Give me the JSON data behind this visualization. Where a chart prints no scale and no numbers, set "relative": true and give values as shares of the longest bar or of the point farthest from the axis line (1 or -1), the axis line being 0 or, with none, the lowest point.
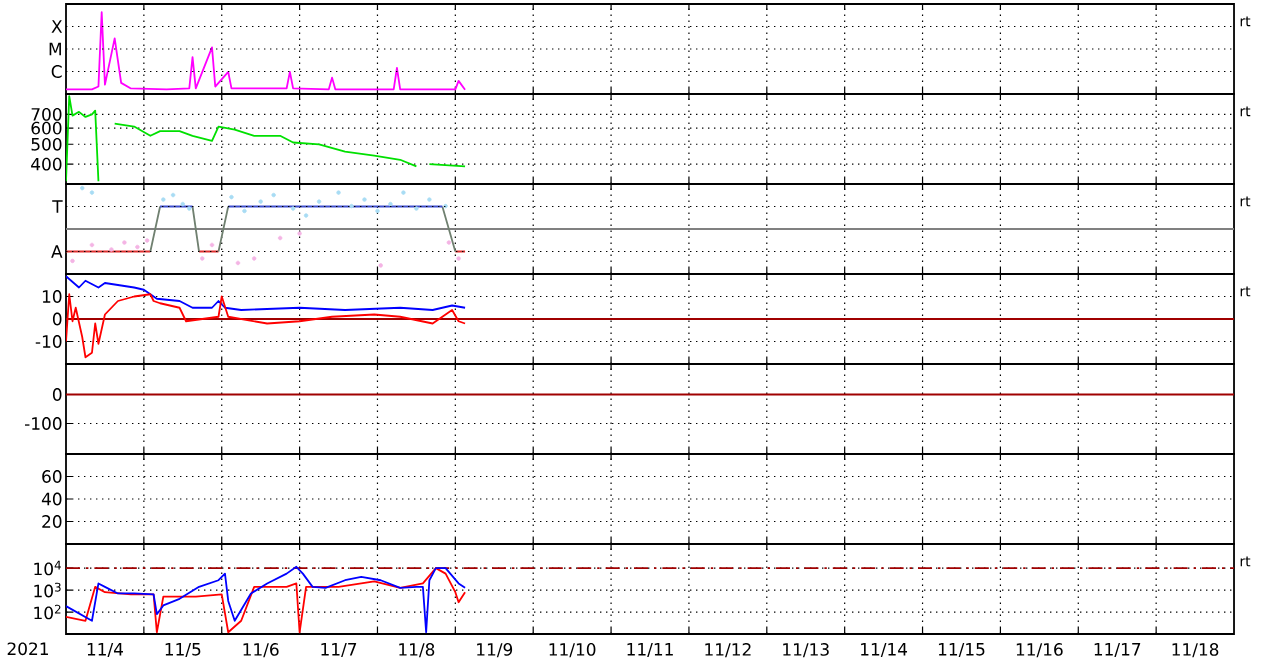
{
  "chart_data": [
    {
      "type": "line",
      "relative": true,
      "grid": true,
      "tick_labels": "y",
      "annotations": [
        "rt",
        "X",
        "M",
        "C"
      ],
      "xlim": [
        "2021-11-04T00:00",
        "2021-11-19T00:00"
      ],
      "xticks": [
        {
          "value": "2021-11-05T00:00",
          "label": null
        },
        {
          "value": "2021-11-06T00:00",
          "label": null
        },
        {
          "value": "2021-11-07T00:00",
          "label": null
        },
        {
          "value": "2021-11-08T00:00",
          "label": null
        },
        {
          "value": "2021-11-09T00:00",
          "label": null
        },
        {
          "value": "2021-11-10T00:00",
          "label": null
        },
        {
          "value": "2021-11-11T00:00",
          "label": null
        },
        {
          "value": "2021-11-12T00:00",
          "label": null
        },
        {
          "value": "2021-11-13T00:00",
          "label": null
        },
        {
          "value": "2021-11-14T00:00",
          "label": null
        },
        {
          "value": "2021-11-15T00:00",
          "label": null
        },
        {
          "value": "2021-11-16T00:00",
          "label": null
        },
        {
          "value": "2021-11-17T00:00",
          "label": null
        },
        {
          "value": "2021-11-18T00:00",
          "label": null
        }
      ],
      "series": [
        {
          "color": "#ff00ff",
          "x": [
            "2021-11-04T00:00",
            "2021-11-04T08:00",
            "2021-11-04T10:00",
            "2021-11-04T11:00",
            "2021-11-04T12:00",
            "2021-11-04T15:00",
            "2021-11-04T17:00",
            "2021-11-04T20:00",
            "2021-11-05T07:00",
            "2021-11-05T14:00",
            "2021-11-05T15:00",
            "2021-11-05T16:00",
            "2021-11-05T21:00",
            "2021-11-05T22:00",
            "2021-11-06T02:00",
            "2021-11-06T03:00",
            "2021-11-06T20:00",
            "2021-11-06T21:00",
            "2021-11-06T22:00",
            "2021-11-07T09:00",
            "2021-11-07T10:00",
            "2021-11-07T11:00",
            "2021-11-08T05:00",
            "2021-11-08T06:00",
            "2021-11-08T07:00",
            "2021-11-09T00:00",
            "2021-11-09T01:00",
            "2021-11-09T03:00"
          ],
          "values": [
            0.057,
            0.057,
            0.091,
            1,
            0.114,
            0.68,
            0.136,
            0.068,
            0.057,
            0.068,
            0.45,
            0.068,
            0.57,
            0.091,
            0.27,
            0.068,
            0.068,
            0.27,
            0.068,
            0.057,
            0.2,
            0.057,
            0.057,
            0.32,
            0.057,
            0.057,
            0.16,
            0.052
          ]
        }
      ]
    },
    {
      "type": "line",
      "log": "y",
      "grid": true,
      "tick_labels": "y",
      "annotations": [
        "rt"
      ],
      "xlim": [
        "2021-11-04T00:00",
        "2021-11-19T00:00"
      ],
      "xticks": [
        {
          "value": "2021-11-05T00:00",
          "label": null
        },
        {
          "value": "2021-11-06T00:00",
          "label": null
        },
        {
          "value": "2021-11-07T00:00",
          "label": null
        },
        {
          "value": "2021-11-08T00:00",
          "label": null
        },
        {
          "value": "2021-11-09T00:00",
          "label": null
        },
        {
          "value": "2021-11-10T00:00",
          "label": null
        },
        {
          "value": "2021-11-11T00:00",
          "label": null
        },
        {
          "value": "2021-11-12T00:00",
          "label": null
        },
        {
          "value": "2021-11-13T00:00",
          "label": null
        },
        {
          "value": "2021-11-14T00:00",
          "label": null
        },
        {
          "value": "2021-11-15T00:00",
          "label": null
        },
        {
          "value": "2021-11-16T00:00",
          "label": null
        },
        {
          "value": "2021-11-17T00:00",
          "label": null
        },
        {
          "value": "2021-11-18T00:00",
          "label": null
        }
      ],
      "ylim": [
        320,
        880
      ],
      "yticks": [
        700,
        600,
        500,
        400
      ],
      "series": [
        {
          "color": "#00e000",
          "x": [
            "2021-11-04T00:00",
            "2021-11-04T01:00",
            "2021-11-04T02:00",
            "2021-11-04T04:00",
            "2021-11-04T06:00",
            "2021-11-04T08:00",
            "2021-11-04T09:00",
            "2021-11-04T10:00",
            "2021-11-04T11:00",
            "2021-11-04T15:00",
            "2021-11-04T21:00",
            "2021-11-05T02:00",
            "2021-11-05T05:00",
            "2021-11-05T11:00",
            "2021-11-05T15:00",
            "2021-11-05T21:00",
            "2021-11-05T23:00",
            "2021-11-06T04:00",
            "2021-11-06T10:00",
            "2021-11-06T18:00",
            "2021-11-06T22:00",
            "2021-11-07T06:00",
            "2021-11-07T14:00",
            "2021-11-07T23:00",
            "2021-11-08T07:00",
            "2021-11-08T12:00",
            "2021-11-08T14:00",
            "2021-11-08T16:00",
            "2021-11-09T03:00"
          ],
          "values": [
            330,
            860,
            690,
            720,
            680,
            700,
            730,
            330,
            null,
            630,
            610,
            550,
            580,
            580,
            550,
            520,
            610,
            590,
            550,
            550,
            510,
            500,
            460,
            440,
            420,
            390,
            null,
            400,
            390
          ]
        }
      ]
    },
    {
      "type": "line",
      "relative": true,
      "grid": true,
      "tick_labels": "y",
      "annotations": [
        "rt",
        "T",
        "A"
      ],
      "xlim": [
        "2021-11-04T00:00",
        "2021-11-19T00:00"
      ],
      "xticks": [
        {
          "value": "2021-11-05T00:00",
          "label": null
        },
        {
          "value": "2021-11-06T00:00",
          "label": null
        },
        {
          "value": "2021-11-07T00:00",
          "label": null
        },
        {
          "value": "2021-11-08T00:00",
          "label": null
        },
        {
          "value": "2021-11-09T00:00",
          "label": null
        },
        {
          "value": "2021-11-10T00:00",
          "label": null
        },
        {
          "value": "2021-11-11T00:00",
          "label": null
        },
        {
          "value": "2021-11-12T00:00",
          "label": null
        },
        {
          "value": "2021-11-13T00:00",
          "label": null
        },
        {
          "value": "2021-11-14T00:00",
          "label": null
        },
        {
          "value": "2021-11-15T00:00",
          "label": null
        },
        {
          "value": "2021-11-16T00:00",
          "label": null
        },
        {
          "value": "2021-11-17T00:00",
          "label": null
        },
        {
          "value": "2021-11-18T00:00",
          "label": null
        }
      ],
      "ref_lines": [
        {
          "axis": "y",
          "value": 0,
          "color": "#808080"
        }
      ],
      "series": [
        {
          "type": "scatter",
          "color": "#a8dcf4",
          "x": [
            "2021-11-04T05:00",
            "2021-11-04T08:00",
            "2021-11-05T06:00",
            "2021-11-05T09:00",
            "2021-11-05T12:00",
            "2021-11-05T14:00",
            "2021-11-06T03:00",
            "2021-11-06T07:00",
            "2021-11-06T12:00",
            "2021-11-06T16:00",
            "2021-11-06T22:00",
            "2021-11-07T02:00",
            "2021-11-07T06:00",
            "2021-11-07T12:00",
            "2021-11-07T16:00",
            "2021-11-07T20:00",
            "2021-11-08T00:00",
            "2021-11-08T04:00",
            "2021-11-08T08:00",
            "2021-11-08T12:00",
            "2021-11-08T16:00",
            "2021-11-08T21:00"
          ],
          "values": [
            1,
            0.89,
            0.72,
            0.83,
            0.61,
            0.5,
            0.78,
            0.44,
            0.67,
            0.83,
            0.5,
            0.33,
            0.67,
            0.89,
            0.56,
            0.72,
            0.44,
            0.61,
            0.89,
            0.5,
            0.72,
            0.56
          ]
        },
        {
          "type": "scatter",
          "color": "#f4b4e4",
          "x": [
            "2021-11-04T02:00",
            "2021-11-04T08:00",
            "2021-11-04T14:00",
            "2021-11-04T18:00",
            "2021-11-04T22:00",
            "2021-11-05T01:00",
            "2021-11-05T18:00",
            "2021-11-05T21:00",
            "2021-11-06T05:00",
            "2021-11-06T10:00",
            "2021-11-06T18:00",
            "2021-11-07T00:00",
            "2021-11-08T01:00",
            "2021-11-08T22:00",
            "2021-11-09T01:00"
          ],
          "values": [
            -0.78,
            -0.39,
            -0.5,
            -0.33,
            -0.44,
            -0.28,
            -0.72,
            -0.39,
            -0.83,
            -0.72,
            -0.22,
            -0.11,
            -0.89,
            -0.33,
            -0.72
          ]
        },
        {
          "color": "#e03030",
          "x": [
            "2021-11-04T00:00",
            "2021-11-05T02:00",
            "2021-11-05T03:00",
            "2021-11-05T17:00",
            "2021-11-05T23:00",
            "2021-11-06T00:00",
            "2021-11-09T00:00",
            "2021-11-09T03:00"
          ],
          "values": [
            -0.55,
            -0.55,
            null,
            -0.55,
            -0.55,
            null,
            -0.55,
            -0.55
          ]
        },
        {
          "color": "#708070",
          "x": [
            "2021-11-05T02:00",
            "2021-11-05T05:00",
            "2021-11-05T06:00",
            "2021-11-05T15:00",
            "2021-11-05T17:00",
            "2021-11-05T18:00",
            "2021-11-05T23:00",
            "2021-11-06T02:00",
            "2021-11-06T03:00",
            "2021-11-08T20:00",
            "2021-11-09T00:00"
          ],
          "values": [
            -0.55,
            0.55,
            null,
            0.55,
            -0.55,
            null,
            -0.55,
            0.55,
            null,
            0.55,
            -0.55
          ]
        },
        {
          "color": "#4050d0",
          "x": [
            "2021-11-05T05:00",
            "2021-11-05T15:00",
            "2021-11-05T16:00",
            "2021-11-06T02:00",
            "2021-11-08T20:00"
          ],
          "values": [
            0.55,
            0.55,
            null,
            0.55,
            0.55
          ]
        }
      ]
    },
    {
      "type": "line",
      "grid": true,
      "tick_labels": "y",
      "annotations": [
        "rt"
      ],
      "xlim": [
        "2021-11-04T00:00",
        "2021-11-19T00:00"
      ],
      "xticks": [
        {
          "value": "2021-11-05T00:00",
          "label": null
        },
        {
          "value": "2021-11-06T00:00",
          "label": null
        },
        {
          "value": "2021-11-07T00:00",
          "label": null
        },
        {
          "value": "2021-11-08T00:00",
          "label": null
        },
        {
          "value": "2021-11-09T00:00",
          "label": null
        },
        {
          "value": "2021-11-10T00:00",
          "label": null
        },
        {
          "value": "2021-11-11T00:00",
          "label": null
        },
        {
          "value": "2021-11-12T00:00",
          "label": null
        },
        {
          "value": "2021-11-13T00:00",
          "label": null
        },
        {
          "value": "2021-11-14T00:00",
          "label": null
        },
        {
          "value": "2021-11-15T00:00",
          "label": null
        },
        {
          "value": "2021-11-16T00:00",
          "label": null
        },
        {
          "value": "2021-11-17T00:00",
          "label": null
        },
        {
          "value": "2021-11-18T00:00",
          "label": null
        }
      ],
      "ylim": [
        -20,
        20
      ],
      "yticks": [
        10,
        0,
        -10
      ],
      "ref_lines": [
        {
          "axis": "y",
          "value": 0,
          "color": "#a00000"
        }
      ],
      "series": [
        {
          "color": "#0000ff",
          "x": [
            "2021-11-04T00:00",
            "2021-11-04T04:00",
            "2021-11-04T06:00",
            "2021-11-04T10:00",
            "2021-11-04T12:00",
            "2021-11-04T21:00",
            "2021-11-05T00:00",
            "2021-11-05T04:00",
            "2021-11-05T11:00",
            "2021-11-05T15:00",
            "2021-11-05T21:00",
            "2021-11-05T23:00",
            "2021-11-06T01:00",
            "2021-11-06T06:00",
            "2021-11-07T00:00",
            "2021-11-07T14:00",
            "2021-11-08T07:00",
            "2021-11-08T17:00",
            "2021-11-08T23:00",
            "2021-11-09T03:00"
          ],
          "values": [
            19,
            14,
            17,
            14,
            16,
            14,
            13,
            9,
            8,
            5,
            5,
            8,
            5,
            4,
            5,
            4,
            5,
            4,
            6,
            5
          ]
        },
        {
          "color": "#ff0000",
          "x": [
            "2021-11-04T00:00",
            "2021-11-04T01:00",
            "2021-11-04T02:00",
            "2021-11-04T03:00",
            "2021-11-04T05:00",
            "2021-11-04T06:00",
            "2021-11-04T08:00",
            "2021-11-04T09:00",
            "2021-11-04T10:00",
            "2021-11-04T12:00",
            "2021-11-04T16:00",
            "2021-11-04T21:00",
            "2021-11-05T02:00",
            "2021-11-05T03:00",
            "2021-11-05T05:00",
            "2021-11-05T11:00",
            "2021-11-05T13:00",
            "2021-11-05T23:00",
            "2021-11-06T00:00",
            "2021-11-06T02:00",
            "2021-11-06T14:00",
            "2021-11-07T00:00",
            "2021-11-07T10:00",
            "2021-11-07T23:00",
            "2021-11-08T07:00",
            "2021-11-08T17:00",
            "2021-11-08T23:00",
            "2021-11-09T01:00",
            "2021-11-09T03:00"
          ],
          "values": [
            -10,
            11,
            -1,
            5,
            -8,
            -17,
            -15,
            -2,
            -11,
            2,
            8,
            10,
            11,
            8,
            7,
            5,
            -1,
            1,
            10,
            1,
            -2,
            -1,
            1,
            2,
            1,
            -2,
            4,
            -1,
            -2
          ]
        }
      ]
    },
    {
      "type": "line",
      "grid": true,
      "tick_labels": "y",
      "xlim": [
        "2021-11-04T00:00",
        "2021-11-19T00:00"
      ],
      "xticks": [
        {
          "value": "2021-11-05T00:00",
          "label": null
        },
        {
          "value": "2021-11-06T00:00",
          "label": null
        },
        {
          "value": "2021-11-07T00:00",
          "label": null
        },
        {
          "value": "2021-11-08T00:00",
          "label": null
        },
        {
          "value": "2021-11-09T00:00",
          "label": null
        },
        {
          "value": "2021-11-10T00:00",
          "label": null
        },
        {
          "value": "2021-11-11T00:00",
          "label": null
        },
        {
          "value": "2021-11-12T00:00",
          "label": null
        },
        {
          "value": "2021-11-13T00:00",
          "label": null
        },
        {
          "value": "2021-11-14T00:00",
          "label": null
        },
        {
          "value": "2021-11-15T00:00",
          "label": null
        },
        {
          "value": "2021-11-16T00:00",
          "label": null
        },
        {
          "value": "2021-11-17T00:00",
          "label": null
        },
        {
          "value": "2021-11-18T00:00",
          "label": null
        }
      ],
      "ylim": [
        -205,
        105
      ],
      "yticks": [
        0,
        -100
      ],
      "ref_lines": [
        {
          "axis": "y",
          "value": 0,
          "color": "#a00000"
        }
      ]
    },
    {
      "type": "line",
      "grid": true,
      "tick_labels": "y",
      "xlim": [
        "2021-11-04T00:00",
        "2021-11-19T00:00"
      ],
      "xticks": [
        {
          "value": "2021-11-05T00:00",
          "label": null
        },
        {
          "value": "2021-11-06T00:00",
          "label": null
        },
        {
          "value": "2021-11-07T00:00",
          "label": null
        },
        {
          "value": "2021-11-08T00:00",
          "label": null
        },
        {
          "value": "2021-11-09T00:00",
          "label": null
        },
        {
          "value": "2021-11-10T00:00",
          "label": null
        },
        {
          "value": "2021-11-11T00:00",
          "label": null
        },
        {
          "value": "2021-11-12T00:00",
          "label": null
        },
        {
          "value": "2021-11-13T00:00",
          "label": null
        },
        {
          "value": "2021-11-14T00:00",
          "label": null
        },
        {
          "value": "2021-11-15T00:00",
          "label": null
        },
        {
          "value": "2021-11-16T00:00",
          "label": null
        },
        {
          "value": "2021-11-17T00:00",
          "label": null
        },
        {
          "value": "2021-11-18T00:00",
          "label": null
        }
      ],
      "ylim": [
        0,
        80
      ],
      "yticks": [
        60,
        40,
        20
      ]
    },
    {
      "type": "line",
      "log": "y",
      "grid": true,
      "annotations": [
        "rt"
      ],
      "xlabel": "2021",
      "xlim": [
        "2021-11-04T00:00",
        "2021-11-19T00:00"
      ],
      "xticks": [
        {
          "value": "2021-11-05T00:00",
          "label": null
        },
        {
          "value": "2021-11-06T00:00",
          "label": null
        },
        {
          "value": "2021-11-07T00:00",
          "label": null
        },
        {
          "value": "2021-11-08T00:00",
          "label": null
        },
        {
          "value": "2021-11-09T00:00",
          "label": null
        },
        {
          "value": "2021-11-10T00:00",
          "label": null
        },
        {
          "value": "2021-11-11T00:00",
          "label": null
        },
        {
          "value": "2021-11-12T00:00",
          "label": null
        },
        {
          "value": "2021-11-13T00:00",
          "label": null
        },
        {
          "value": "2021-11-14T00:00",
          "label": null
        },
        {
          "value": "2021-11-15T00:00",
          "label": null
        },
        {
          "value": "2021-11-16T00:00",
          "label": null
        },
        {
          "value": "2021-11-17T00:00",
          "label": null
        },
        {
          "value": "2021-11-18T00:00",
          "label": null
        },
        {
          "value": "2021-11-04T12:00",
          "label": "11/4"
        },
        {
          "value": "2021-11-05T12:00",
          "label": "11/5"
        },
        {
          "value": "2021-11-06T12:00",
          "label": "11/6"
        },
        {
          "value": "2021-11-07T12:00",
          "label": "11/7"
        },
        {
          "value": "2021-11-08T12:00",
          "label": "11/8"
        },
        {
          "value": "2021-11-09T12:00",
          "label": "11/9"
        },
        {
          "value": "2021-11-10T12:00",
          "label": "11/10"
        },
        {
          "value": "2021-11-11T12:00",
          "label": "11/11"
        },
        {
          "value": "2021-11-12T12:00",
          "label": "11/12"
        },
        {
          "value": "2021-11-13T12:00",
          "label": "11/13"
        },
        {
          "value": "2021-11-14T12:00",
          "label": "11/14"
        },
        {
          "value": "2021-11-15T12:00",
          "label": "11/15"
        },
        {
          "value": "2021-11-16T12:00",
          "label": "11/16"
        },
        {
          "value": "2021-11-17T12:00",
          "label": "11/17"
        },
        {
          "value": "2021-11-18T12:00",
          "label": "11/18"
        }
      ],
      "ylim": [
        10,
        125000
      ],
      "yticks": [
        {
          "value": 10000,
          "label": "10$^{4}$"
        },
        {
          "value": 1000,
          "label": "10$^{3}$"
        },
        {
          "value": 100,
          "label": "10$^{2}$"
        }
      ],
      "ref_lines": [
        {
          "axis": "y",
          "value": 10000,
          "color": "#a00000",
          "line_style": "dashed"
        }
      ],
      "series": [
        {
          "color": "#ff0000",
          "x": [
            "2021-11-04T00:00",
            "2021-11-04T06:00",
            "2021-11-04T09:00",
            "2021-11-04T12:00",
            "2021-11-04T20:00",
            "2021-11-05T03:00",
            "2021-11-05T04:00",
            "2021-11-05T06:00",
            "2021-11-05T16:00",
            "2021-11-06T00:00",
            "2021-11-06T02:00",
            "2021-11-06T06:00",
            "2021-11-06T10:00",
            "2021-11-06T20:00",
            "2021-11-06T23:00",
            "2021-11-07T00:00",
            "2021-11-07T02:00",
            "2021-11-07T12:00",
            "2021-11-07T23:00",
            "2021-11-08T07:00",
            "2021-11-08T14:00",
            "2021-11-08T18:00",
            "2021-11-08T21:00",
            "2021-11-09T00:00",
            "2021-11-09T01:00",
            "2021-11-09T03:00"
          ],
          "values": [
            60,
            40,
            1400,
            800,
            630,
            630,
            12,
            500,
            500,
            630,
            12,
            40,
            1400,
            1400,
            2000,
            12,
            1400,
            1400,
            2500,
            1260,
            2000,
            10000,
            5600,
            800,
            280,
            800
          ]
        },
        {
          "color": "#0000ff",
          "x": [
            "2021-11-04T00:00",
            "2021-11-04T08:00",
            "2021-11-04T10:00",
            "2021-11-04T12:00",
            "2021-11-04T16:00",
            "2021-11-04T21:00",
            "2021-11-05T03:00",
            "2021-11-05T04:00",
            "2021-11-05T06:00",
            "2021-11-05T11:00",
            "2021-11-05T17:00",
            "2021-11-05T23:00",
            "2021-11-06T01:00",
            "2021-11-06T02:00",
            "2021-11-06T04:00",
            "2021-11-06T09:00",
            "2021-11-06T14:00",
            "2021-11-06T20:00",
            "2021-11-06T23:00",
            "2021-11-07T01:00",
            "2021-11-07T04:00",
            "2021-11-07T08:00",
            "2021-11-07T14:00",
            "2021-11-07T19:00",
            "2021-11-08T01:00",
            "2021-11-08T07:00",
            "2021-11-08T12:00",
            "2021-11-08T14:00",
            "2021-11-08T15:00",
            "2021-11-08T16:00",
            "2021-11-08T18:00",
            "2021-11-08T21:00",
            "2021-11-09T01:00",
            "2021-11-09T03:00"
          ],
          "values": [
            186,
            40,
            2000,
            1400,
            700,
            700,
            630,
            80,
            200,
            400,
            1400,
            2800,
            5600,
            320,
            40,
            700,
            2000,
            5600,
            11500,
            5600,
            1400,
            1260,
            2800,
            4000,
            2800,
            1260,
            1400,
            1400,
            12,
            2800,
            10000,
            10000,
            2000,
            1260
          ]
        }
      ]
    }
  ]
}
